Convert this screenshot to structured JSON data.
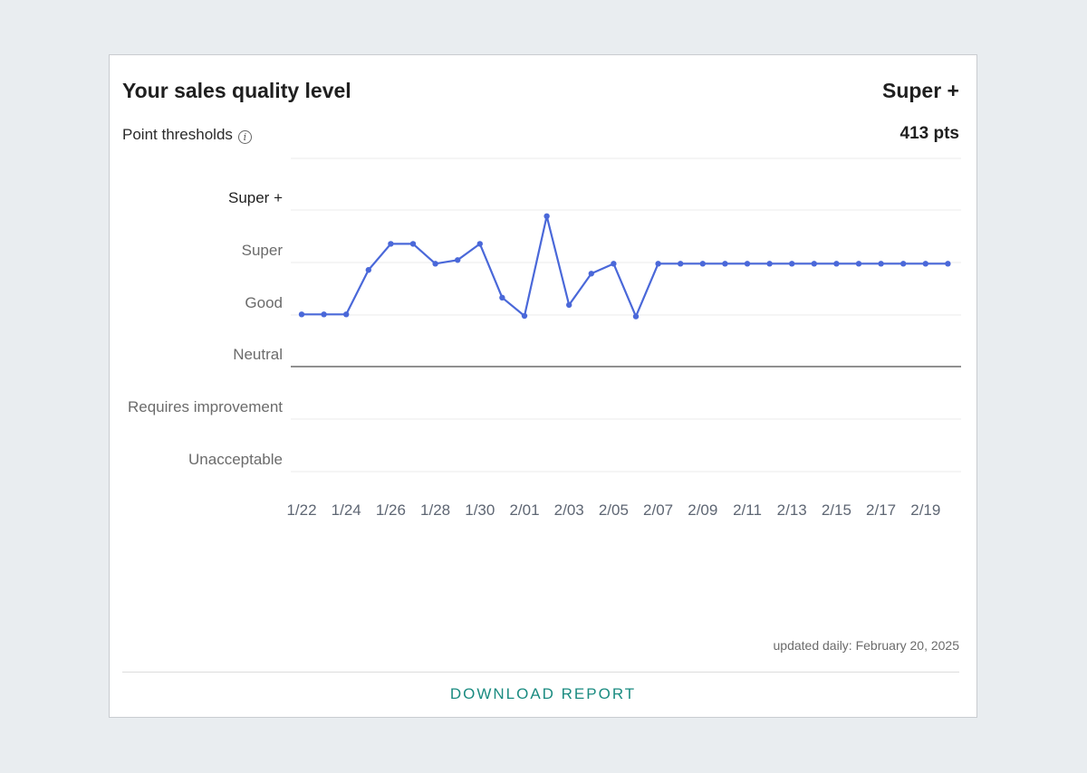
{
  "header": {
    "title": "Your sales quality level",
    "current_level": "Super +",
    "thresholds_label": "Point thresholds",
    "info_icon": "info-icon",
    "points": "413 pts"
  },
  "chart_data": {
    "type": "line",
    "y_categories": [
      "Super +",
      "Super",
      "Good",
      "Neutral",
      "Requires improvement",
      "Unacceptable"
    ],
    "highlighted_category": "Super +",
    "baseline_category": "Neutral",
    "x_tick_labels": [
      "1/22",
      "1/24",
      "1/26",
      "1/28",
      "1/30",
      "2/01",
      "2/03",
      "2/05",
      "2/07",
      "2/09",
      "2/11",
      "2/13",
      "2/15",
      "2/17",
      "2/19"
    ],
    "x": [
      "1/22",
      "1/23",
      "1/24",
      "1/25",
      "1/26",
      "1/27",
      "1/28",
      "1/29",
      "1/30",
      "1/31",
      "2/01",
      "2/02",
      "2/03",
      "2/04",
      "2/05",
      "2/06",
      "2/07",
      "2/08",
      "2/09",
      "2/10",
      "2/11",
      "2/12",
      "2/13",
      "2/14",
      "2/15",
      "2/16",
      "2/17",
      "2/18",
      "2/19",
      "2/20"
    ],
    "series": [
      {
        "values": [
          1.0,
          1.0,
          1.0,
          1.85,
          2.35,
          2.35,
          1.97,
          2.04,
          2.35,
          1.32,
          0.97,
          2.88,
          1.18,
          1.78,
          1.97,
          0.96,
          1.97,
          1.97,
          1.97,
          1.97,
          1.97,
          1.97,
          1.97,
          1.97,
          1.97,
          1.97,
          1.97,
          1.97,
          1.97,
          1.97
        ]
      }
    ],
    "y_scale_note": "values in threshold bands relative to Neutral baseline (0 = Neutral, 1 = Super, 2 = Super +)",
    "colors": {
      "line": "#4a68d9",
      "grid": "#ebebeb",
      "baseline": "#6b6b6b"
    }
  },
  "footer": {
    "updated": "updated daily: February 20, 2025",
    "download_label": "DOWNLOAD REPORT"
  }
}
